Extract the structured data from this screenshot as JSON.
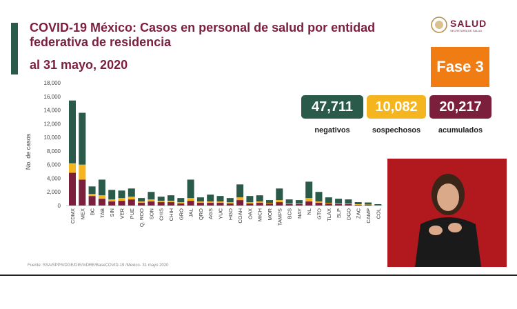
{
  "header": {
    "title": "COVID-19 México: Casos en personal de salud por entidad federativa de residencia",
    "subtitle": "al 31 mayo, 2020",
    "logo_text": "SALUD",
    "logo_subtext": "SECRETARÍA DE SALUD",
    "phase_label": "Fase 3"
  },
  "stats": [
    {
      "value": "47,711",
      "label": "negativos",
      "color": "#2a5a4a"
    },
    {
      "value": "10,082",
      "label": "sospechosos",
      "color": "#f5b51e"
    },
    {
      "value": "20,217",
      "label": "acumulados",
      "color": "#7b1f3d"
    }
  ],
  "source": "Fuente: SSA/SPPS/DGE/DIE/InDRE/BaseCOVID-19 /Mexico- 31 mayo 2020",
  "colors": {
    "confirmed": "#7b1f3d",
    "suspected": "#f5b51e",
    "negative": "#2a5a4a"
  },
  "chart_data": {
    "type": "bar",
    "stacked": true,
    "ylabel": "No. de casos",
    "ylim": [
      0,
      18000
    ],
    "yticks": [
      "0",
      "2,000",
      "4,000",
      "6,000",
      "8,000",
      "10,000",
      "12,000",
      "14,000",
      "16,000",
      "18,000"
    ],
    "grid": false,
    "categories": [
      "CDMX",
      "MEX",
      "BC",
      "TAB",
      "SIN",
      "VER",
      "PUE",
      "Q. ROO",
      "SON",
      "CHIS",
      "CHIH",
      "GRO",
      "JAL",
      "QRO",
      "AGS",
      "YUC",
      "HGO",
      "COAH",
      "OAX",
      "MICH",
      "MOR",
      "TAMPS",
      "BCS",
      "NAY",
      "NL",
      "GTO",
      "TLAX",
      "SLP",
      "DGO",
      "ZAC",
      "CAMP",
      "COL"
    ],
    "series": [
      {
        "values": [
          4800,
          3800,
          1400,
          1000,
          600,
          700,
          900,
          400,
          600,
          500,
          500,
          300,
          700,
          400,
          400,
          400,
          300,
          800,
          300,
          400,
          300,
          500,
          200,
          200,
          600,
          400,
          300,
          200,
          200,
          100,
          100,
          50
        ]
      },
      {
        "values": [
          1400,
          2200,
          300,
          500,
          300,
          400,
          400,
          200,
          300,
          200,
          200,
          200,
          400,
          200,
          200,
          200,
          200,
          400,
          200,
          200,
          100,
          300,
          100,
          100,
          500,
          200,
          100,
          100,
          100,
          100,
          50,
          30
        ]
      },
      {
        "values": [
          9200,
          7600,
          1100,
          2300,
          1400,
          1100,
          1200,
          500,
          1100,
          600,
          800,
          600,
          2700,
          600,
          1000,
          800,
          600,
          1900,
          900,
          900,
          400,
          1700,
          600,
          500,
          2400,
          1400,
          800,
          700,
          600,
          300,
          300,
          120
        ]
      }
    ]
  }
}
